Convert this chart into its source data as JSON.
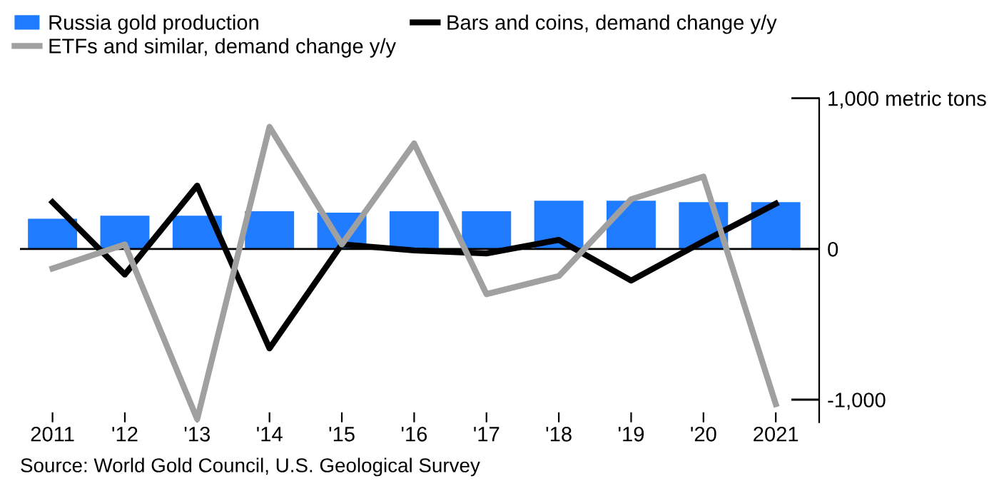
{
  "chart_data": {
    "type": "bar",
    "categories": [
      "2011",
      "'12",
      "'13",
      "'14",
      "'15",
      "'16",
      "'17",
      "'18",
      "'19",
      "'20",
      "2021"
    ],
    "series": [
      {
        "name": "Russia gold production",
        "color": "#1f7bff",
        "values": [
          200,
          220,
          220,
          250,
          240,
          250,
          250,
          320,
          320,
          310,
          310
        ]
      },
      {
        "name": "Bars and coins, demand change y/y",
        "type": "line",
        "color": "#000000",
        "values": [
          310,
          -170,
          420,
          -660,
          30,
          -10,
          -30,
          60,
          -210,
          50,
          300
        ]
      },
      {
        "name": "ETFs and similar, demand change y/y",
        "type": "line",
        "color": "#a0a0a0",
        "values": [
          -130,
          30,
          -1130,
          810,
          30,
          700,
          -300,
          -180,
          330,
          480,
          -1030
        ]
      }
    ],
    "ylim": [
      -1150,
      1000
    ],
    "yticks": [
      {
        "value": 1000,
        "label": "1,000 metric tons"
      },
      0,
      {
        "value": -1000,
        "label": "-1,000"
      }
    ],
    "ref_lines": [
      {
        "axis": "y",
        "value": 0,
        "color": "#000000"
      }
    ],
    "legend": "top left",
    "annotations": [
      "Source: World Gold Council, U.S. Geological Survey"
    ]
  }
}
